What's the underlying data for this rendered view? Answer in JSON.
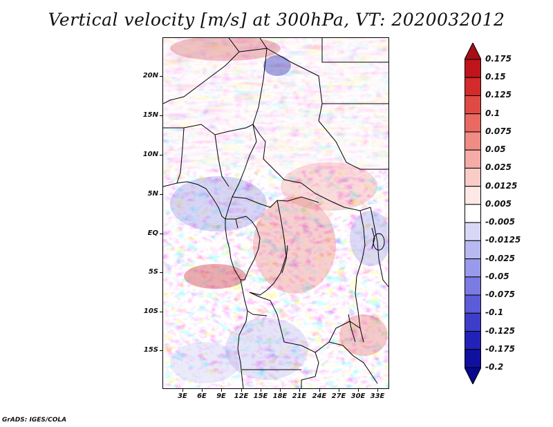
{
  "title": "Vertical velocity [m/s] at 300hPa, VT: 2020032012",
  "credit": "GrADS: IGES/COLA",
  "map": {
    "lat_labels": [
      "20N",
      "15N",
      "10N",
      "5N",
      "EQ",
      "5S",
      "10S",
      "15S"
    ],
    "lon_labels": [
      "3E",
      "6E",
      "9E",
      "12E",
      "15E",
      "18E",
      "21E",
      "24E",
      "27E",
      "30E",
      "33E"
    ]
  },
  "colorbar": {
    "labels": [
      "0.175",
      "0.15",
      "0.125",
      "0.1",
      "0.075",
      "0.05",
      "0.025",
      "0.0125",
      "0.005",
      "-0.005",
      "-0.0125",
      "-0.025",
      "-0.05",
      "-0.075",
      "-0.1",
      "-0.125",
      "-0.175",
      "-0.2"
    ],
    "colors": [
      "#a50f15",
      "#c0141c",
      "#d42a2a",
      "#e04a44",
      "#e86a62",
      "#ef8c84",
      "#f5aca6",
      "#f9ccc8",
      "#fde8e6",
      "#ffffff",
      "#d8d8f6",
      "#b9b9f1",
      "#9a9aec",
      "#7b7be3",
      "#5c5cd8",
      "#3d3dca",
      "#2222b8",
      "#1010a0",
      "#08088a"
    ]
  },
  "colors": {
    "positive_strong": "#c0141c",
    "negative_strong": "#2a2ac0",
    "neutral": "#ffffff"
  }
}
